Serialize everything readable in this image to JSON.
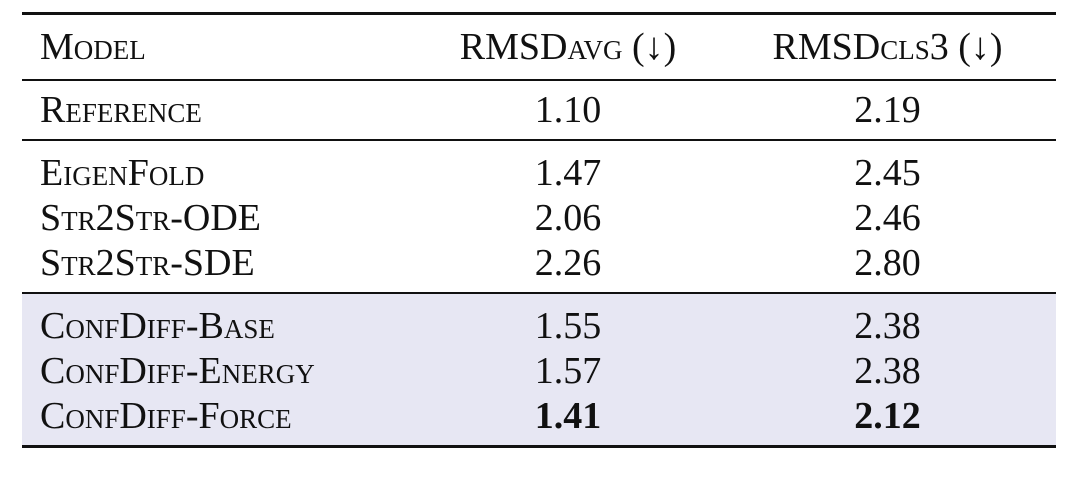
{
  "table": {
    "header": {
      "model": "Model",
      "col1_main": "RMSD",
      "col1_sub": "avg",
      "col1_arrow": " (↓)",
      "col2_main": "RMSD",
      "col2_sub": "cls3",
      "col2_arrow": " (↓)"
    },
    "reference": {
      "model": "Reference",
      "rmsd_avg": "1.10",
      "rmsd_cls3": "2.19"
    },
    "baselines": [
      {
        "model": "EigenFold",
        "rmsd_avg": "1.47",
        "rmsd_cls3": "2.45"
      },
      {
        "model": "Str2Str-ODE",
        "rmsd_avg": "2.06",
        "rmsd_cls3": "2.46"
      },
      {
        "model": "Str2Str-SDE",
        "rmsd_avg": "2.26",
        "rmsd_cls3": "2.80"
      }
    ],
    "ours": [
      {
        "model": "ConfDiff-Base",
        "rmsd_avg": "1.55",
        "rmsd_cls3": "2.38",
        "bold": false
      },
      {
        "model": "ConfDiff-Energy",
        "rmsd_avg": "1.57",
        "rmsd_cls3": "2.38",
        "bold": false
      },
      {
        "model": "ConfDiff-Force",
        "rmsd_avg": "1.41",
        "rmsd_cls3": "2.12",
        "bold": true
      }
    ],
    "highlight_color": "#e7e7f3"
  }
}
